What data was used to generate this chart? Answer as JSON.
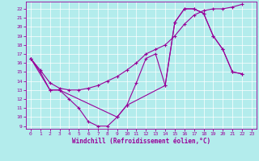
{
  "xlabel": "Windchill (Refroidissement éolien,°C)",
  "background_color": "#b3ecec",
  "line_color": "#990099",
  "grid_color": "#ffffff",
  "xlim": [
    -0.5,
    23.5
  ],
  "ylim": [
    8.7,
    22.8
  ],
  "yticks": [
    9,
    10,
    11,
    12,
    13,
    14,
    15,
    16,
    17,
    18,
    19,
    20,
    21,
    22
  ],
  "xticks": [
    0,
    1,
    2,
    3,
    4,
    5,
    6,
    7,
    8,
    9,
    10,
    11,
    12,
    13,
    14,
    15,
    16,
    17,
    18,
    19,
    20,
    21,
    22,
    23
  ],
  "series1_x": [
    0,
    1,
    2,
    3,
    4,
    5,
    6,
    7,
    8,
    9,
    10,
    11,
    12,
    13,
    14,
    15,
    16,
    17,
    18,
    19,
    20,
    21,
    22
  ],
  "series1_y": [
    16.5,
    15.0,
    13.0,
    13.0,
    12.0,
    11.0,
    9.5,
    9.0,
    9.0,
    10.0,
    11.3,
    13.8,
    16.5,
    17.0,
    13.5,
    20.5,
    22.0,
    22.0,
    21.5,
    19.0,
    17.5,
    15.0,
    14.8
  ],
  "series2_x": [
    0,
    1,
    2,
    3,
    4,
    5,
    6,
    7,
    8,
    9,
    10,
    11,
    12,
    13,
    14,
    15,
    16,
    17,
    18,
    19,
    20,
    21,
    22
  ],
  "series2_y": [
    16.5,
    15.2,
    13.8,
    13.2,
    13.0,
    13.0,
    13.2,
    13.5,
    14.0,
    14.5,
    15.2,
    16.0,
    17.0,
    17.5,
    18.0,
    19.0,
    20.3,
    21.3,
    21.8,
    22.0,
    22.0,
    22.2,
    22.5
  ],
  "series3_x": [
    0,
    2,
    3,
    9,
    10,
    14,
    15,
    16,
    17,
    18,
    19,
    20,
    21,
    22
  ],
  "series3_y": [
    16.5,
    13.0,
    13.0,
    10.0,
    11.3,
    13.5,
    20.5,
    22.0,
    22.0,
    21.5,
    19.0,
    17.5,
    15.0,
    14.8
  ],
  "tick_fontsize": 4.5,
  "xlabel_fontsize": 5.5,
  "marker_size": 3.5,
  "line_width": 0.8
}
